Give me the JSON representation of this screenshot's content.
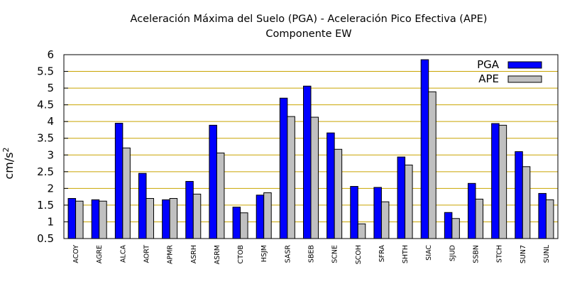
{
  "chart_data": {
    "type": "bar",
    "title": "Aceleración Máxima del Suelo (PGA) -  Aceleración Pico Efectiva (APE)",
    "subtitle": "Componente EW",
    "xlabel": "",
    "ylabel": "cm/s",
    "ylabel_superscript": "2",
    "ylim": [
      0.5,
      6
    ],
    "yticks": [
      "0.5",
      "1",
      "1.5",
      "2",
      "2.5",
      "3",
      "3.5",
      "4",
      "4.5",
      "5",
      "5.5",
      "6"
    ],
    "grid": true,
    "legend_position": "top-right",
    "categories": [
      "ACOY",
      "AGRE",
      "ALCA",
      "AORT",
      "APMR",
      "ASRH",
      "ASRM",
      "CTOB",
      "HSJM",
      "SASR",
      "SBEB",
      "SCNE",
      "SCOH",
      "SFRA",
      "SHTH",
      "SIAC",
      "SJUD",
      "SSBN",
      "STCH",
      "SUN7",
      "SUNL"
    ],
    "series": [
      {
        "name": "PGA",
        "color": "#0000ff",
        "values": [
          1.7,
          1.66,
          3.95,
          2.45,
          1.66,
          2.21,
          3.89,
          1.44,
          1.8,
          4.7,
          5.06,
          3.66,
          2.06,
          2.03,
          2.94,
          5.85,
          1.28,
          2.15,
          3.94,
          3.1,
          1.85
        ]
      },
      {
        "name": "APE",
        "color": "#c0c0c0",
        "values": [
          1.62,
          1.62,
          3.21,
          1.7,
          1.7,
          1.83,
          3.06,
          1.27,
          1.87,
          4.15,
          4.13,
          3.17,
          0.94,
          1.6,
          2.7,
          4.89,
          1.1,
          1.68,
          3.89,
          2.65,
          1.66
        ]
      }
    ]
  }
}
